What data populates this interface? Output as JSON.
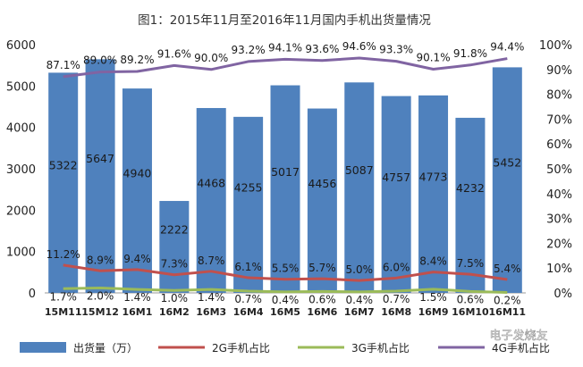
{
  "chart_data": {
    "type": "bar",
    "title": "图1：2015年11月至2016年11月国内手机出货量情况",
    "categories": [
      "15M11",
      "15M12",
      "16M1",
      "16M2",
      "16M3",
      "16M4",
      "16M5",
      "16M6",
      "16M7",
      "16M8",
      "16M9",
      "16M10",
      "16M11"
    ],
    "series": [
      {
        "name": "出货量（万）",
        "type": "bar",
        "axis": "left",
        "color": "#4F81BD",
        "values": [
          5322,
          5647,
          4940,
          2222,
          4468,
          4255,
          5017,
          4456,
          5087,
          4757,
          4773,
          4232,
          5452
        ],
        "labels": [
          "5322",
          "5647",
          "4940",
          "2222",
          "4468",
          "4255",
          "5017",
          "4456",
          "5087",
          "4757",
          "4773",
          "4232",
          "5452"
        ]
      },
      {
        "name": "2G手机占比",
        "type": "line",
        "axis": "right",
        "color": "#C0504D",
        "values": [
          11.2,
          8.9,
          9.4,
          7.3,
          8.7,
          6.1,
          5.5,
          5.7,
          5.0,
          6.0,
          8.4,
          7.5,
          5.4
        ],
        "labels": [
          "11.2%",
          "8.9%",
          "9.4%",
          "7.3%",
          "8.7%",
          "6.1%",
          "5.5%",
          "5.7%",
          "5.0%",
          "6.0%",
          "8.4%",
          "7.5%",
          "5.4%"
        ]
      },
      {
        "name": "3G手机占比",
        "type": "line",
        "axis": "right",
        "color": "#9BBB59",
        "values": [
          1.7,
          2.0,
          1.4,
          1.0,
          1.4,
          0.7,
          0.4,
          0.6,
          0.4,
          0.7,
          1.5,
          0.6,
          0.2
        ],
        "labels": [
          "1.7%",
          "2.0%",
          "1.4%",
          "1.0%",
          "1.4%",
          "0.7%",
          "0.4%",
          "0.6%",
          "0.4%",
          "0.7%",
          "1.5%",
          "0.6%",
          "0.2%"
        ]
      },
      {
        "name": "4G手机占比",
        "type": "line",
        "axis": "right",
        "color": "#8064A2",
        "values": [
          87.1,
          89.0,
          89.2,
          91.6,
          90.0,
          93.2,
          94.1,
          93.6,
          94.6,
          93.3,
          90.1,
          91.8,
          94.4
        ],
        "labels": [
          "87.1%",
          "89.0%",
          "89.2%",
          "91.6%",
          "90.0%",
          "93.2%",
          "94.1%",
          "93.6%",
          "94.6%",
          "93.3%",
          "90.1%",
          "91.8%",
          "94.4%"
        ]
      }
    ],
    "ylim": [
      0,
      6000
    ],
    "y_ticks": [
      "0",
      "1000",
      "2000",
      "3000",
      "4000",
      "5000",
      "6000"
    ],
    "y2lim": [
      0,
      100
    ],
    "y2_ticks": [
      "0%",
      "10%",
      "20%",
      "30%",
      "40%",
      "50%",
      "60%",
      "70%",
      "80%",
      "90%",
      "100%"
    ],
    "grid": false,
    "legend_position": "bottom"
  },
  "watermark": "电子发烧友"
}
